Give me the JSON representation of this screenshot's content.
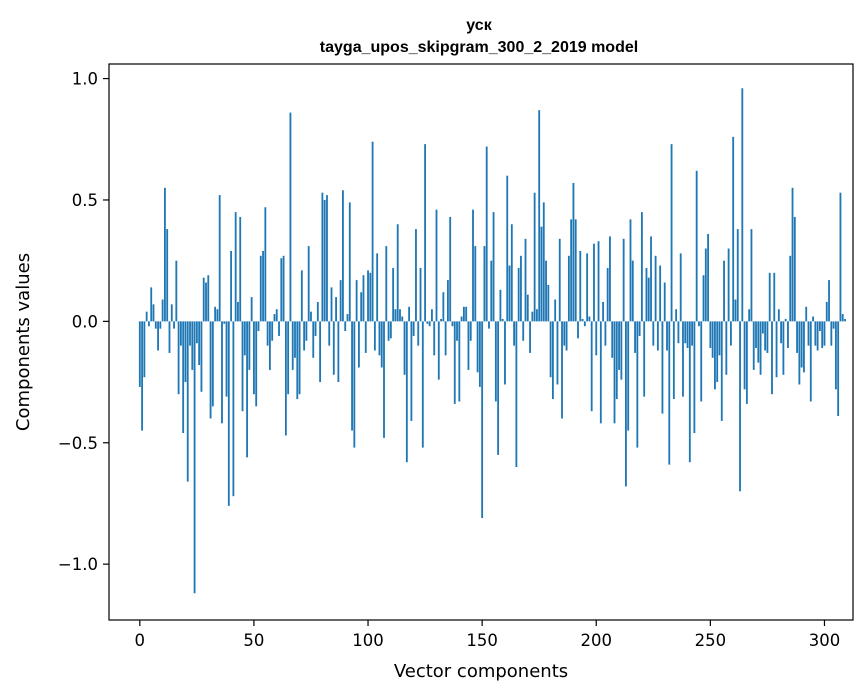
{
  "chart_data": {
    "type": "bar",
    "title": "уск",
    "subtitle": "tayga_upos_skipgram_300_2_2019 model",
    "xlabel": "Vector components",
    "ylabel": "Components values",
    "xlim": [
      -13.5,
      312.5
    ],
    "ylim": [
      -1.23,
      1.06
    ],
    "xticks": [
      0,
      50,
      100,
      150,
      200,
      250,
      300
    ],
    "xtick_labels": [
      "0",
      "50",
      "100",
      "150",
      "200",
      "250",
      "300"
    ],
    "yticks": [
      -1.0,
      -0.5,
      0.0,
      0.5,
      1.0
    ],
    "ytick_labels": [
      "−1.0",
      "−0.5",
      "0.0",
      "0.5",
      "1.0"
    ],
    "bar_color": "#1f77b4",
    "grid": false,
    "values": [
      -0.27,
      -0.45,
      -0.23,
      0.04,
      -0.02,
      0.14,
      0.07,
      -0.03,
      -0.12,
      -0.03,
      0.09,
      0.55,
      0.38,
      -0.13,
      0.07,
      -0.03,
      0.25,
      -0.3,
      -0.1,
      -0.46,
      -0.25,
      -0.66,
      -0.1,
      -0.2,
      -1.12,
      -0.09,
      -0.18,
      -0.29,
      0.18,
      0.16,
      0.19,
      -0.4,
      -0.35,
      0.06,
      0.05,
      0.52,
      -0.42,
      -0.01,
      -0.31,
      -0.76,
      0.29,
      -0.72,
      0.45,
      0.08,
      0.43,
      -0.37,
      -0.14,
      -0.56,
      -0.2,
      0.1,
      -0.3,
      -0.35,
      -0.04,
      0.27,
      0.29,
      0.47,
      -0.1,
      -0.2,
      -0.08,
      0.03,
      0.05,
      -0.06,
      0.26,
      0.27,
      -0.47,
      -0.3,
      0.86,
      -0.2,
      -0.15,
      -0.32,
      -0.3,
      0.21,
      -0.12,
      -0.08,
      0.31,
      0.04,
      -0.15,
      -0.06,
      0.08,
      -0.25,
      0.53,
      0.5,
      0.52,
      -0.1,
      0.14,
      -0.22,
      0.1,
      -0.25,
      0.17,
      0.54,
      -0.04,
      0.03,
      0.49,
      -0.45,
      -0.52,
      0.17,
      -0.19,
      0.12,
      0.19,
      -0.13,
      0.21,
      0.2,
      0.74,
      -0.12,
      0.28,
      -0.14,
      -0.19,
      -0.48,
      0.31,
      -0.08,
      -0.07,
      0.22,
      0.05,
      0.4,
      0.05,
      0.02,
      -0.22,
      -0.58,
      0.06,
      -0.41,
      -0.06,
      0.38,
      -0.1,
      0.22,
      -0.52,
      0.73,
      -0.01,
      -0.02,
      0.05,
      -0.14,
      0.46,
      -0.24,
      0.01,
      0.12,
      -0.14,
      0.17,
      0.43,
      -0.02,
      -0.34,
      -0.08,
      -0.33,
      0.02,
      0.06,
      0.06,
      -0.2,
      -0.08,
      0.46,
      0.31,
      -0.21,
      -0.27,
      -0.81,
      0.31,
      0.72,
      -0.03,
      0.25,
      0.45,
      -0.33,
      -0.55,
      0.13,
      0.01,
      -0.26,
      0.6,
      0.23,
      0.4,
      -0.1,
      -0.6,
      0.22,
      0.27,
      -0.08,
      0.34,
      0.11,
      -0.13,
      0.04,
      0.53,
      0.05,
      0.87,
      0.39,
      0.49,
      0.25,
      0.15,
      -0.23,
      -0.32,
      0.09,
      -0.26,
      0.34,
      -0.4,
      -0.1,
      -0.12,
      0.27,
      0.42,
      0.57,
      0.42,
      -0.07,
      0.29,
      0.01,
      -0.02,
      0.28,
      0.02,
      -0.37,
      0.32,
      -0.14,
      0.33,
      -0.42,
      0.08,
      -0.1,
      0.22,
      0.35,
      -0.15,
      -0.42,
      -0.32,
      -0.2,
      -0.24,
      0.34,
      -0.68,
      -0.45,
      0.42,
      0.25,
      -0.13,
      -0.52,
      -0.06,
      0.45,
      -0.31,
      0.22,
      0.18,
      0.35,
      -0.1,
      0.27,
      -0.12,
      0.23,
      -0.38,
      0.16,
      -0.12,
      -0.59,
      0.73,
      -0.32,
      0.05,
      -0.09,
      0.28,
      -0.31,
      -0.09,
      -0.11,
      -0.58,
      -0.1,
      -0.46,
      0.62,
      -0.02,
      -0.33,
      0.19,
      0.3,
      0.36,
      -0.11,
      -0.15,
      -0.28,
      -0.25,
      -0.14,
      -0.41,
      0.25,
      -0.22,
      0.3,
      -0.1,
      0.76,
      0.09,
      0.38,
      -0.7,
      0.96,
      -0.28,
      -0.34,
      0.05,
      0.38,
      -0.2,
      -0.11,
      -0.17,
      -0.22,
      -0.05,
      -0.12,
      -0.13,
      0.2,
      -0.3,
      0.2,
      -0.23,
      0.05,
      -0.09,
      -0.22,
      0.01,
      -0.11,
      0.27,
      0.55,
      0.43,
      -0.13,
      -0.26,
      -0.19,
      -0.21,
      0.06,
      -0.1,
      -0.33,
      0.02,
      -0.1,
      -0.12,
      -0.04,
      -0.11,
      -0.1,
      0.08,
      0.17,
      -0.1,
      -0.03,
      -0.28,
      -0.39,
      0.53,
      0.03,
      0.01
    ]
  }
}
